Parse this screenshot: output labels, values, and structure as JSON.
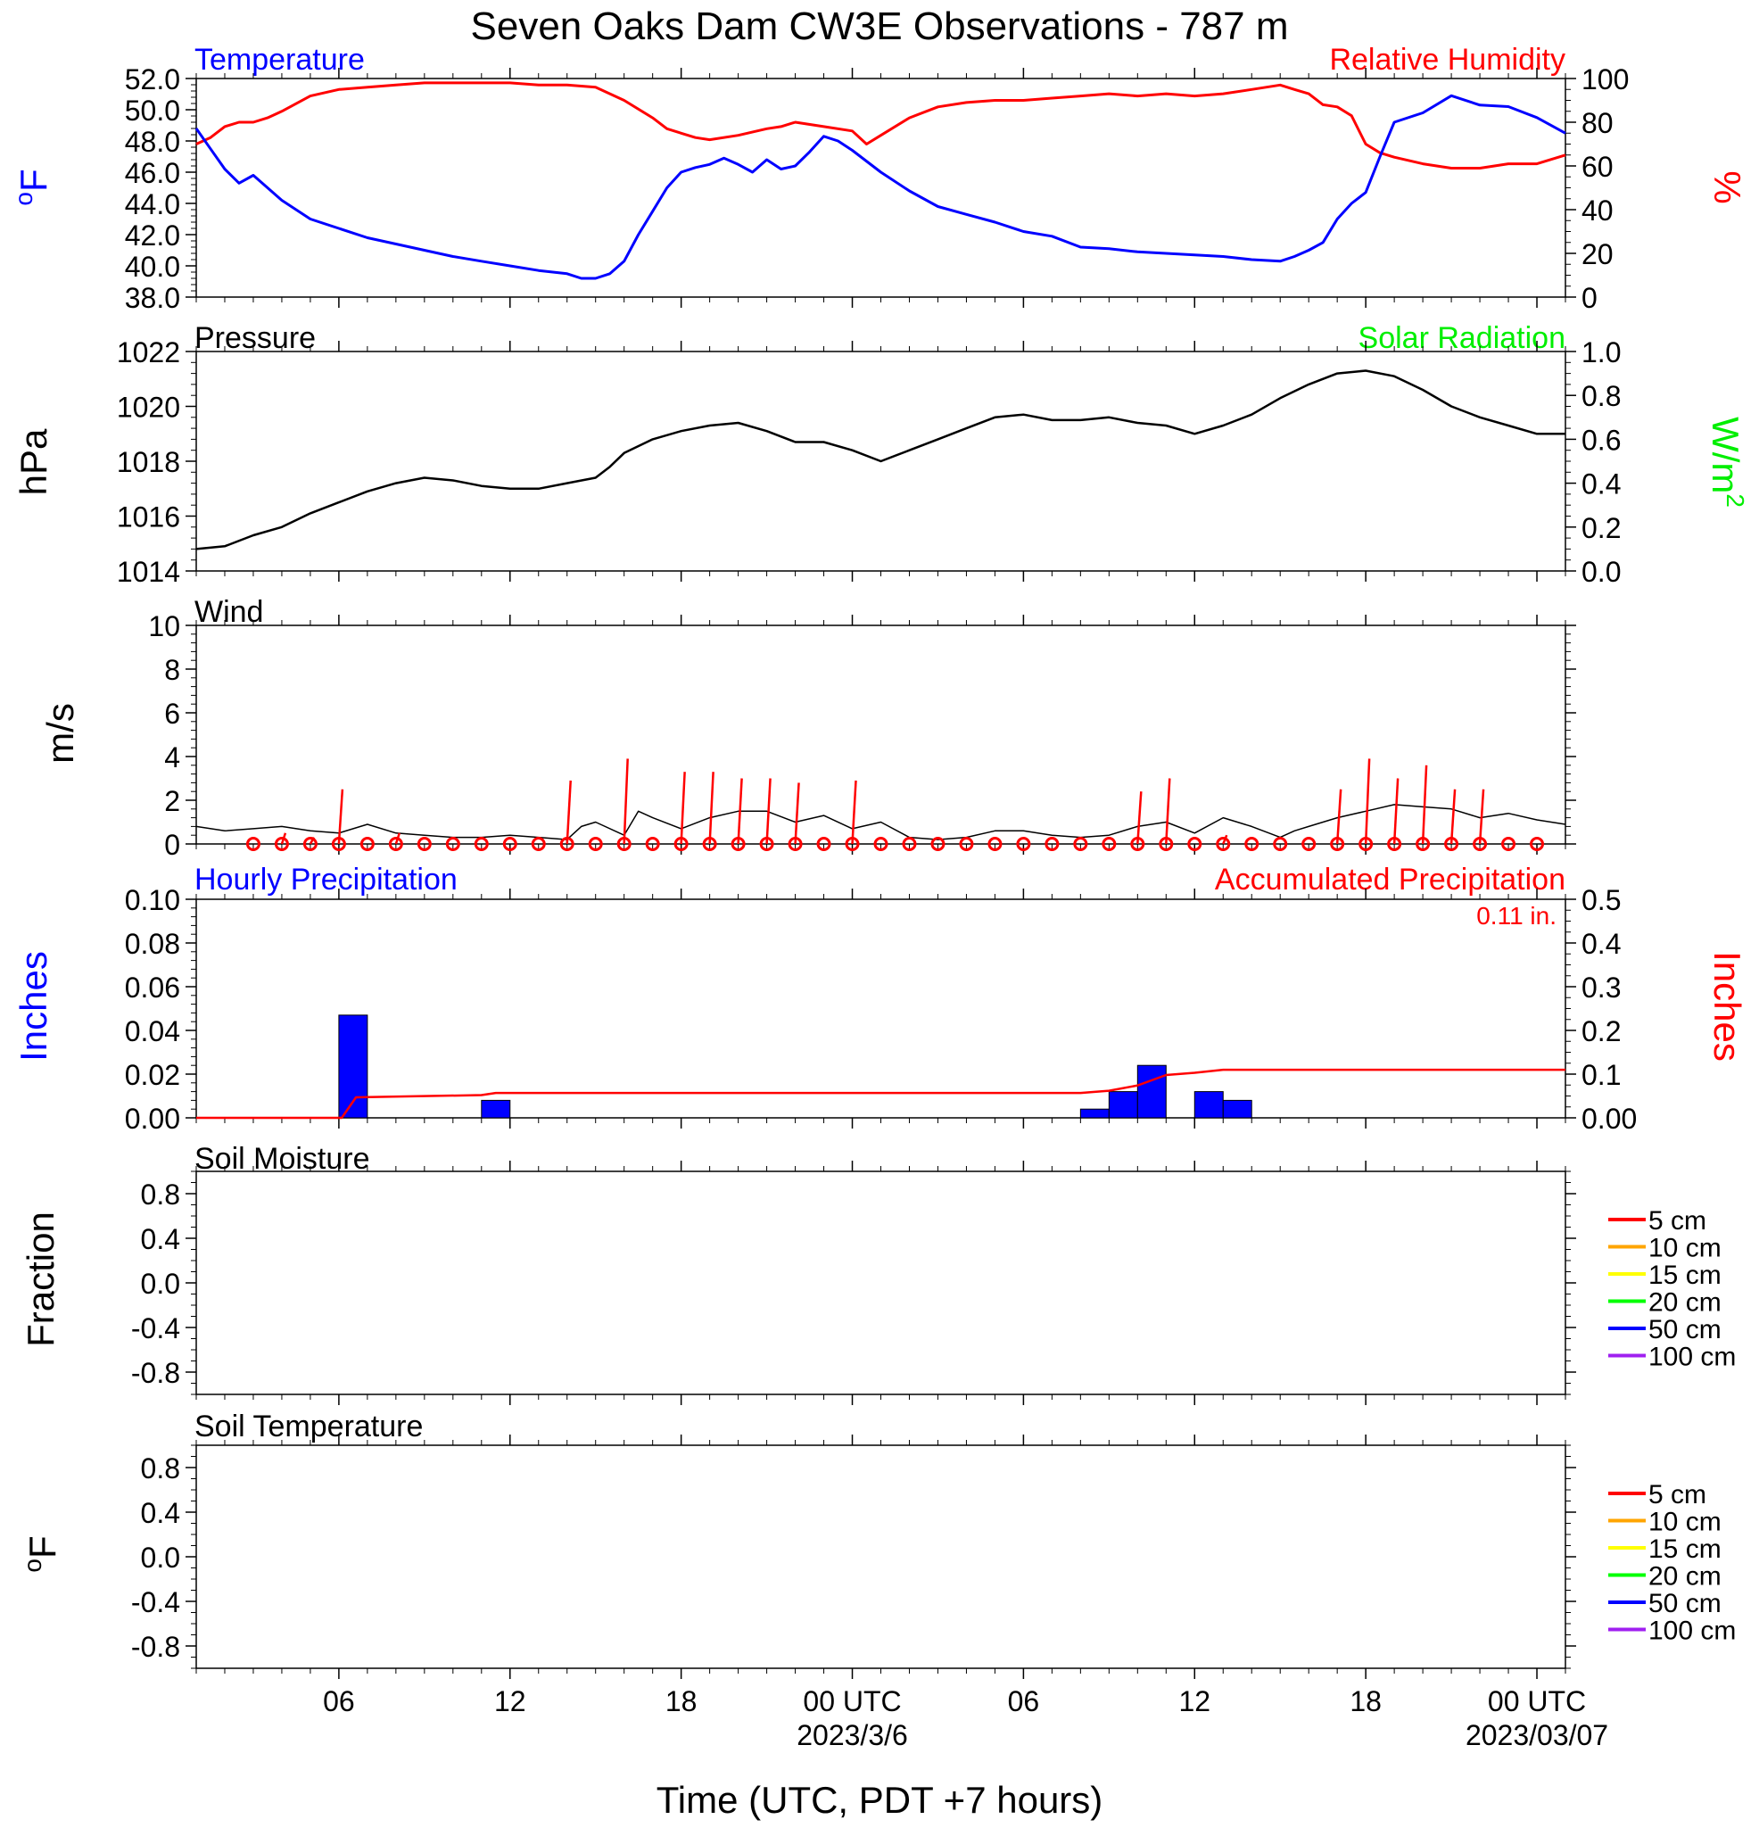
{
  "title": "Seven Oaks Dam CW3E Observations - 787 m",
  "xlabel": "Time (UTC, PDT +7 hours)",
  "x_axis": {
    "range_hours": [
      0,
      48
    ],
    "ticks": [
      {
        "h": 5,
        "label": "06",
        "sub": ""
      },
      {
        "h": 11,
        "label": "12",
        "sub": ""
      },
      {
        "h": 17,
        "label": "18",
        "sub": ""
      },
      {
        "h": 23,
        "label": "00 UTC",
        "sub": "2023/3/6"
      },
      {
        "h": 29,
        "label": "06",
        "sub": ""
      },
      {
        "h": 35,
        "label": "12",
        "sub": ""
      },
      {
        "h": 41,
        "label": "18",
        "sub": ""
      },
      {
        "h": 47,
        "label": "00 UTC",
        "sub": "2023/03/07"
      }
    ]
  },
  "colors": {
    "blue": "#0000ff",
    "red": "#ff0000",
    "green": "#00ee00",
    "black": "#000000"
  },
  "panels": {
    "temp_rh": {
      "left_title": "Temperature",
      "right_title": "Relative Humidity",
      "left_unit": "oF",
      "right_unit": "%",
      "left_ticks": [
        "52.0",
        "50.0",
        "48.0",
        "46.0",
        "44.0",
        "42.0",
        "40.0",
        "38.0"
      ],
      "right_ticks": [
        "100",
        "80",
        "60",
        "40",
        "20",
        "0"
      ]
    },
    "pressure": {
      "left_title": "Pressure",
      "right_title": "Solar Radiation",
      "left_unit": "hPa",
      "right_unit": "W/m2",
      "left_ticks": [
        "1022",
        "1020",
        "1018",
        "1016",
        "1014"
      ],
      "right_ticks": [
        "1.0",
        "0.8",
        "0.6",
        "0.4",
        "0.2",
        "0.0"
      ]
    },
    "wind": {
      "left_title": "Wind",
      "left_unit": "m/s",
      "left_ticks": [
        "10",
        "8",
        "6",
        "4",
        "2",
        "0"
      ]
    },
    "precip": {
      "left_title": "Hourly Precipitation",
      "right_title": "Accumulated Precipitation",
      "total_label": "0.11 in.",
      "left_unit": "Inches",
      "right_unit": "Inches",
      "left_ticks": [
        "0.10",
        "0.08",
        "0.06",
        "0.04",
        "0.02",
        "0.00"
      ],
      "right_ticks": [
        "0.5",
        "0.4",
        "0.3",
        "0.2",
        "0.1",
        "0.00"
      ]
    },
    "soil_moisture": {
      "left_title": "Soil Moisture",
      "left_unit": "Fraction",
      "left_ticks": [
        "0.8",
        "0.4",
        "0.0",
        "-0.4",
        "-0.8"
      ]
    },
    "soil_temp": {
      "left_title": "Soil Temperature",
      "left_unit": "oF",
      "left_ticks": [
        "0.8",
        "0.4",
        "0.0",
        "-0.4",
        "-0.8"
      ]
    }
  },
  "legend_depths": [
    {
      "label": "5 cm",
      "color": "#ff0000"
    },
    {
      "label": "10 cm",
      "color": "#ffa500"
    },
    {
      "label": "15 cm",
      "color": "#ffff00"
    },
    {
      "label": "20 cm",
      "color": "#00ff00"
    },
    {
      "label": "50 cm",
      "color": "#0000ff"
    },
    {
      "label": "100 cm",
      "color": "#a020f0"
    }
  ],
  "chart_data": [
    {
      "type": "line",
      "panel": "temp_rh",
      "x_units": "hours since plot start",
      "ylim_left": [
        38,
        52
      ],
      "ylim_right": [
        0,
        100
      ],
      "series": [
        {
          "name": "Temperature",
          "axis": "left",
          "color": "#0000ff",
          "x": [
            0,
            0.5,
            1,
            1.5,
            2,
            3,
            4,
            5,
            6,
            7,
            8,
            9,
            10,
            11,
            12,
            13,
            13.5,
            14,
            14.5,
            15,
            15.5,
            16,
            16.5,
            17,
            17.5,
            18,
            18.5,
            19,
            19.5,
            20,
            20.5,
            21,
            21.5,
            22,
            22.5,
            23,
            24,
            25,
            26,
            27,
            28,
            29,
            30,
            31,
            32,
            33,
            34,
            35,
            36,
            37,
            38,
            38.5,
            39,
            39.5,
            40,
            40.5,
            41,
            41.5,
            42,
            43,
            44,
            45,
            46,
            47,
            48
          ],
          "y": [
            48.8,
            47.5,
            46.2,
            45.3,
            45.8,
            44.2,
            43.0,
            42.4,
            41.8,
            41.4,
            41.0,
            40.6,
            40.3,
            40.0,
            39.7,
            39.5,
            39.2,
            39.2,
            39.5,
            40.3,
            42.0,
            43.5,
            45.0,
            46.0,
            46.3,
            46.5,
            46.9,
            46.5,
            46.0,
            46.8,
            46.2,
            46.4,
            47.3,
            48.3,
            48.0,
            47.4,
            46.0,
            44.8,
            43.8,
            43.3,
            42.8,
            42.2,
            41.9,
            41.2,
            41.1,
            40.9,
            40.8,
            40.7,
            40.6,
            40.4,
            40.3,
            40.6,
            41.0,
            41.5,
            43.0,
            44.0,
            44.7,
            47.0,
            49.2,
            49.8,
            50.9,
            50.3,
            50.2,
            49.5,
            48.5
          ]
        },
        {
          "name": "Relative Humidity",
          "axis": "right",
          "color": "#ff0000",
          "x": [
            0,
            0.5,
            1,
            1.5,
            2,
            2.5,
            3,
            4,
            5,
            6,
            7,
            8,
            9,
            10,
            11,
            12,
            13,
            14,
            15,
            16,
            16.5,
            17,
            17.5,
            18,
            19,
            20,
            20.5,
            21,
            22,
            23,
            23.5,
            24,
            25,
            26,
            27,
            28,
            29,
            30,
            31,
            32,
            33,
            34,
            35,
            36,
            37,
            38,
            38.5,
            39,
            39.5,
            40,
            40.5,
            41,
            41.5,
            42,
            43,
            44,
            45,
            46,
            47,
            48
          ],
          "y": [
            70,
            73,
            78,
            80,
            80,
            82,
            85,
            92,
            95,
            96,
            97,
            98,
            98,
            98,
            98,
            97,
            97,
            96,
            90,
            82,
            77,
            75,
            73,
            72,
            74,
            77,
            78,
            80,
            78,
            76,
            70,
            74,
            82,
            87,
            89,
            90,
            90,
            91,
            92,
            93,
            92,
            93,
            92,
            93,
            95,
            97,
            95,
            93,
            88,
            87,
            83,
            70,
            66,
            64,
            61,
            59,
            59,
            61,
            61,
            65
          ]
        }
      ]
    },
    {
      "type": "line",
      "panel": "pressure",
      "x_units": "hours since plot start",
      "ylim_left": [
        1014,
        1022
      ],
      "ylim_right": [
        0.0,
        1.0
      ],
      "series": [
        {
          "name": "Pressure",
          "axis": "left",
          "color": "#000000",
          "x": [
            0,
            1,
            2,
            3,
            4,
            5,
            6,
            7,
            8,
            9,
            10,
            11,
            12,
            13,
            14,
            14.5,
            15,
            16,
            17,
            18,
            19,
            20,
            21,
            22,
            23,
            24,
            25,
            26,
            27,
            28,
            29,
            30,
            31,
            32,
            33,
            34,
            35,
            36,
            37,
            38,
            39,
            40,
            41,
            42,
            43,
            44,
            45,
            46,
            47,
            48
          ],
          "y": [
            1014.8,
            1014.9,
            1015.3,
            1015.6,
            1016.1,
            1016.5,
            1016.9,
            1017.2,
            1017.4,
            1017.3,
            1017.1,
            1017.0,
            1017.0,
            1017.2,
            1017.4,
            1017.8,
            1018.3,
            1018.8,
            1019.1,
            1019.3,
            1019.4,
            1019.1,
            1018.7,
            1018.7,
            1018.4,
            1018.0,
            1018.4,
            1018.8,
            1019.2,
            1019.6,
            1019.7,
            1019.5,
            1019.5,
            1019.6,
            1019.4,
            1019.3,
            1019.0,
            1019.3,
            1019.7,
            1020.3,
            1020.8,
            1021.2,
            1021.3,
            1021.1,
            1020.6,
            1020.0,
            1019.6,
            1019.3,
            1019.0,
            1019.0
          ]
        }
      ]
    },
    {
      "type": "line",
      "panel": "wind",
      "x_units": "hours since plot start",
      "ylim": [
        0,
        10
      ],
      "series": [
        {
          "name": "Wind speed",
          "color": "#000000",
          "x": [
            0,
            1,
            2,
            3,
            4,
            5,
            6,
            7,
            8,
            9,
            10,
            11,
            12,
            13,
            13.5,
            14,
            15,
            15.5,
            16,
            17,
            18,
            19,
            20,
            21,
            22,
            23,
            24,
            25,
            26,
            27,
            28,
            29,
            30,
            31,
            32,
            33,
            34,
            35,
            36,
            37,
            38,
            38.5,
            39,
            40,
            41,
            42,
            43,
            44,
            45,
            46,
            47,
            48
          ],
          "y": [
            0.8,
            0.6,
            0.7,
            0.8,
            0.6,
            0.5,
            0.9,
            0.5,
            0.4,
            0.3,
            0.3,
            0.4,
            0.3,
            0.2,
            0.8,
            1.0,
            0.4,
            1.5,
            1.2,
            0.7,
            1.2,
            1.5,
            1.5,
            1.0,
            1.3,
            0.7,
            1.0,
            0.3,
            0.2,
            0.3,
            0.6,
            0.6,
            0.4,
            0.3,
            0.4,
            0.8,
            1.0,
            0.5,
            1.2,
            0.8,
            0.3,
            0.6,
            0.8,
            1.2,
            1.5,
            1.8,
            1.7,
            1.6,
            1.2,
            1.4,
            1.1,
            0.9
          ]
        },
        {
          "name": "Wind barbs",
          "color": "#ff0000",
          "x": [
            2,
            3,
            4,
            5,
            6,
            7,
            8,
            9,
            10,
            11,
            12,
            13,
            14,
            15,
            16,
            17,
            18,
            19,
            20,
            21,
            22,
            23,
            24,
            25,
            26,
            27,
            28,
            29,
            30,
            31,
            32,
            33,
            34,
            35,
            36,
            37,
            38,
            39,
            40,
            41,
            42,
            43,
            44,
            45,
            46,
            47
          ],
          "y": [
            0,
            0.5,
            0.3,
            2.5,
            0,
            0.5,
            0,
            0,
            0.1,
            0,
            0,
            2.9,
            0,
            3.9,
            0,
            3.3,
            3.3,
            3.0,
            3.0,
            2.8,
            0,
            2.9,
            0,
            0,
            0,
            0,
            0,
            0,
            0,
            0,
            0,
            2.4,
            3.0,
            0,
            0.4,
            0,
            0,
            0,
            2.5,
            3.9,
            3.0,
            3.6,
            2.5,
            2.5,
            0.1,
            0
          ]
        }
      ]
    },
    {
      "type": "bar",
      "panel": "precip",
      "x_units": "hours since plot start",
      "ylim_left": [
        0,
        0.1
      ],
      "ylim_right": [
        0,
        0.5
      ],
      "series": [
        {
          "name": "Hourly Precipitation",
          "axis": "left",
          "color": "#0000ff",
          "x": [
            5,
            10,
            31,
            32,
            33,
            35,
            36
          ],
          "y": [
            0.047,
            0.008,
            0.004,
            0.012,
            0.024,
            0.012,
            0.008
          ]
        },
        {
          "name": "Accumulated Precipitation",
          "axis": "right",
          "color": "#ff0000",
          "type": "step",
          "x": [
            0,
            5.1,
            5.6,
            10,
            10.5,
            31,
            32,
            33,
            34,
            35,
            36,
            37,
            48
          ],
          "y": [
            0,
            0,
            0.047,
            0.052,
            0.057,
            0.057,
            0.062,
            0.074,
            0.098,
            0.103,
            0.11,
            0.11,
            0.11
          ]
        }
      ]
    },
    {
      "type": "line",
      "panel": "soil_moisture",
      "ylim": [
        -1,
        1
      ],
      "series": []
    },
    {
      "type": "line",
      "panel": "soil_temp",
      "ylim": [
        -1,
        1
      ],
      "series": []
    }
  ]
}
